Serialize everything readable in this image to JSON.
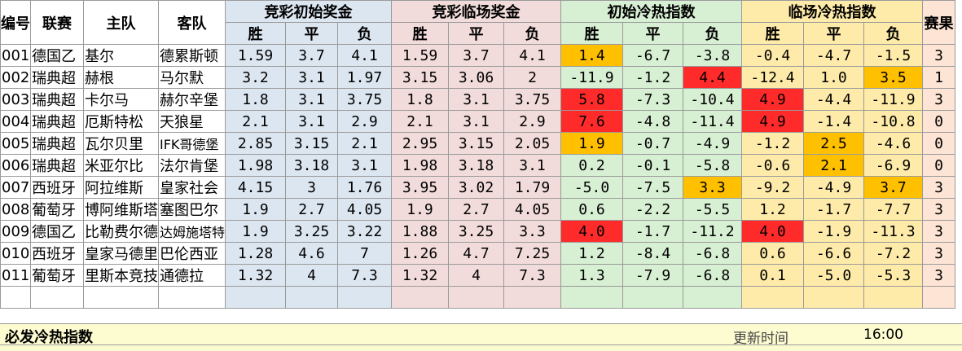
{
  "headers": {
    "id": "编号",
    "league": "联赛",
    "home": "主队",
    "away": "客队",
    "group1": "竞彩初始奖金",
    "group2": "竞彩临场奖金",
    "group3": "初始冷热指数",
    "group4": "临场冷热指数",
    "result": "赛果",
    "win": "胜",
    "draw": "平",
    "lose": "负"
  },
  "rows": [
    {
      "id": "001",
      "league": "德国乙",
      "home": "基尔",
      "away": "德累斯顿",
      "init": [
        "1.59",
        "3.7",
        "4.1"
      ],
      "live": [
        "1.59",
        "3.7",
        "4.1"
      ],
      "hot_init": [
        "1.4",
        "-6.7",
        "-3.8"
      ],
      "hot_live": [
        "-0.4",
        "-4.7",
        "-1.5"
      ],
      "result": "3"
    },
    {
      "id": "002",
      "league": "瑞典超",
      "home": "赫根",
      "away": "马尔默",
      "init": [
        "3.2",
        "3.1",
        "1.97"
      ],
      "live": [
        "3.15",
        "3.06",
        "2"
      ],
      "hot_init": [
        "-11.9",
        "-1.2",
        "4.4"
      ],
      "hot_live": [
        "-12.4",
        "1.0",
        "3.5"
      ],
      "result": "1"
    },
    {
      "id": "003",
      "league": "瑞典超",
      "home": "卡尔马",
      "away": "赫尔辛堡",
      "init": [
        "1.8",
        "3.1",
        "3.75"
      ],
      "live": [
        "1.8",
        "3.1",
        "3.75"
      ],
      "hot_init": [
        "5.8",
        "-7.3",
        "-10.4"
      ],
      "hot_live": [
        "4.9",
        "-4.4",
        "-11.9"
      ],
      "result": "3"
    },
    {
      "id": "004",
      "league": "瑞典超",
      "home": "厄斯特松",
      "away": "天狼星",
      "init": [
        "2.1",
        "3.1",
        "2.9"
      ],
      "live": [
        "2.1",
        "3.1",
        "2.9"
      ],
      "hot_init": [
        "7.6",
        "-4.8",
        "-11.4"
      ],
      "hot_live": [
        "4.9",
        "-1.4",
        "-10.8"
      ],
      "result": "0"
    },
    {
      "id": "005",
      "league": "瑞典超",
      "home": "瓦尔贝里",
      "away": "IFK哥德堡",
      "init": [
        "2.85",
        "3.15",
        "2.1"
      ],
      "live": [
        "2.95",
        "3.15",
        "2.05"
      ],
      "hot_init": [
        "1.9",
        "-0.7",
        "-4.9"
      ],
      "hot_live": [
        "-1.2",
        "2.5",
        "-4.6"
      ],
      "result": "0"
    },
    {
      "id": "006",
      "league": "瑞典超",
      "home": "米亚尔比",
      "away": "法尔肯堡",
      "init": [
        "1.98",
        "3.18",
        "3.1"
      ],
      "live": [
        "1.98",
        "3.18",
        "3.1"
      ],
      "hot_init": [
        "0.2",
        "-0.1",
        "-5.8"
      ],
      "hot_live": [
        "-0.6",
        "2.1",
        "-6.9"
      ],
      "result": "0"
    },
    {
      "id": "007",
      "league": "西班牙",
      "home": "阿拉维斯",
      "away": "皇家社会",
      "init": [
        "4.15",
        "3",
        "1.76"
      ],
      "live": [
        "3.95",
        "3.02",
        "1.79"
      ],
      "hot_init": [
        "-5.0",
        "-7.5",
        "3.3"
      ],
      "hot_live": [
        "-9.2",
        "-4.9",
        "3.7"
      ],
      "result": "3"
    },
    {
      "id": "008",
      "league": "葡萄牙",
      "home": "博阿维斯塔",
      "away": "塞图巴尔",
      "init": [
        "1.9",
        "2.7",
        "4.05"
      ],
      "live": [
        "1.9",
        "2.7",
        "4.05"
      ],
      "hot_init": [
        "0.6",
        "-2.2",
        "-5.5"
      ],
      "hot_live": [
        "1.2",
        "-1.7",
        "-7.7"
      ],
      "result": "3"
    },
    {
      "id": "009",
      "league": "德国乙",
      "home": "比勒费尔德",
      "away": "达姆施塔特",
      "init": [
        "1.9",
        "3.25",
        "3.22"
      ],
      "live": [
        "1.88",
        "3.25",
        "3.3"
      ],
      "hot_init": [
        "4.0",
        "-1.7",
        "-11.2"
      ],
      "hot_live": [
        "4.0",
        "-1.9",
        "-11.3"
      ],
      "result": "3"
    },
    {
      "id": "010",
      "league": "西班牙",
      "home": "皇家马德里",
      "away": "巴伦西亚",
      "init": [
        "1.28",
        "4.6",
        "7"
      ],
      "live": [
        "1.26",
        "4.7",
        "7.25"
      ],
      "hot_init": [
        "1.2",
        "-8.4",
        "-6.8"
      ],
      "hot_live": [
        "0.6",
        "-6.6",
        "-7.2"
      ],
      "result": "3"
    },
    {
      "id": "011",
      "league": "葡萄牙",
      "home": "里斯本竞技",
      "away": "通德拉",
      "init": [
        "1.32",
        "4",
        "7.3"
      ],
      "live": [
        "1.32",
        "4",
        "7.3"
      ],
      "hot_init": [
        "1.3",
        "-7.9",
        "-6.8"
      ],
      "hot_live": [
        "0.1",
        "-5.0",
        "-5.3"
      ],
      "result": "3"
    }
  ],
  "highlights": {
    "hot_init": {
      "0-0": "orange",
      "1-2": "red",
      "2-0": "red",
      "3-0": "red",
      "4-0": "orange",
      "6-2": "orange",
      "8-0": "red"
    },
    "hot_live": {
      "1-2": "orange",
      "2-0": "red",
      "3-0": "red",
      "4-1": "orange",
      "5-1": "orange",
      "6-2": "orange",
      "8-0": "red"
    }
  },
  "colors": {
    "initial_odds_bg": "#dce6f1",
    "live_odds_bg": "#f2dcdb",
    "initial_hot_bg": "#d7efd2",
    "live_hot_bg": "#ffeba9",
    "result_bg": "#fde4d4",
    "highlight_red": "#ff2b2b",
    "highlight_orange": "#ffc000"
  },
  "footer": {
    "title": "必发冷热指数",
    "update_label": "更新时间",
    "update_time": "16:00"
  }
}
